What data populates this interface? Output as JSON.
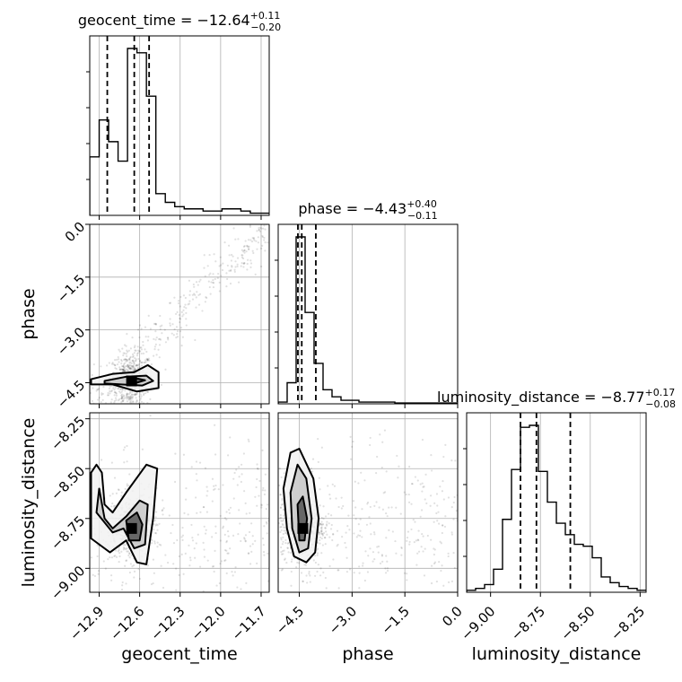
{
  "chart_data": {
    "type": "corner",
    "parameters": [
      "geocent_time",
      "phase",
      "luminosity_distance"
    ],
    "grid": true,
    "titles": [
      {
        "parameter": "geocent_time",
        "prefix": "geocent_time = ",
        "median": "−12.64",
        "plus": "+0.11",
        "minus": "−0.20"
      },
      {
        "parameter": "phase",
        "prefix": "phase = ",
        "median": "−4.43",
        "plus": "+0.40",
        "minus": "−0.11"
      },
      {
        "parameter": "luminosity_distance",
        "prefix": "luminosity_distance = ",
        "median": "−8.77",
        "plus": "+0.17",
        "minus": "−0.08"
      }
    ],
    "axes": {
      "geocent_time": {
        "range": [
          -12.97,
          -11.64
        ],
        "ticks": [
          -12.9,
          -12.6,
          -12.3,
          -12.0,
          -11.7
        ],
        "tick_labels": [
          "−12.9",
          "−12.6",
          "−12.3",
          "−12.0",
          "−11.7"
        ]
      },
      "phase": {
        "range": [
          -5.1,
          0.0
        ],
        "ticks": [
          -4.5,
          -3.0,
          -1.5,
          0.0
        ],
        "tick_labels": [
          "−4.5",
          "−3.0",
          "−1.5",
          "0.0"
        ]
      },
      "luminosity_distance": {
        "range": [
          -9.12,
          -8.22
        ],
        "ticks": [
          -9.0,
          -8.75,
          -8.5,
          -8.25
        ],
        "tick_labels": [
          "−9.00",
          "−8.75",
          "−8.50",
          "−8.25"
        ]
      }
    },
    "histograms": [
      {
        "parameter": "geocent_time",
        "quantiles": [
          -12.84,
          -12.64,
          -12.53
        ],
        "bins": [
          -12.97,
          -12.9,
          -12.83,
          -12.76,
          -12.69,
          -12.62,
          -12.55,
          -12.48,
          -12.41,
          -12.34,
          -12.27,
          -12.2,
          -12.13,
          -12.06,
          -11.99,
          -11.92,
          -11.85,
          -11.78,
          -11.71,
          -11.64
        ],
        "counts": [
          27,
          44,
          34,
          25,
          77,
          75,
          55,
          10,
          6,
          4,
          3,
          3,
          2,
          2,
          3,
          3,
          2,
          1,
          1
        ]
      },
      {
        "parameter": "phase",
        "quantiles": [
          -4.54,
          -4.43,
          -4.03
        ],
        "bins": [
          -5.1,
          -4.845,
          -4.59,
          -4.335,
          -4.08,
          -3.825,
          -3.57,
          -3.315,
          -3.06,
          -2.805,
          -2.55,
          -2.295,
          -2.04,
          -1.785,
          -1.53,
          -1.275,
          -1.02,
          -0.765,
          -0.51,
          -0.255,
          0.0
        ],
        "counts": [
          1,
          12,
          95,
          52,
          23,
          8,
          4,
          2,
          2,
          1,
          1,
          1,
          1,
          0.5,
          0.5,
          0.5,
          0.5,
          0.5,
          0.5,
          0.5
        ]
      },
      {
        "parameter": "luminosity_distance",
        "quantiles": [
          -8.85,
          -8.77,
          -8.6
        ],
        "bins": [
          -9.12,
          -9.075,
          -9.03,
          -8.985,
          -8.94,
          -8.895,
          -8.85,
          -8.805,
          -8.76,
          -8.715,
          -8.67,
          -8.625,
          -8.58,
          -8.535,
          -8.49,
          -8.445,
          -8.4,
          -8.355,
          -8.31,
          -8.265,
          -8.22
        ],
        "counts": [
          1,
          2,
          4,
          12,
          38,
          64,
          86,
          87,
          63,
          47,
          36,
          30,
          25,
          24,
          18,
          8,
          5,
          3,
          2,
          1
        ]
      }
    ],
    "scatter_2d": [
      {
        "x": "geocent_time",
        "y": "phase",
        "density_peak": {
          "x": -12.66,
          "y": -4.45
        },
        "contour_levels": [
          [
            [
              -12.96,
              -4.4
            ],
            [
              -12.8,
              -4.25
            ],
            [
              -12.64,
              -4.2
            ],
            [
              -12.54,
              -4.0
            ],
            [
              -12.46,
              -4.2
            ],
            [
              -12.46,
              -4.65
            ],
            [
              -12.62,
              -4.75
            ],
            [
              -12.8,
              -4.55
            ],
            [
              -12.96,
              -4.55
            ]
          ],
          [
            [
              -12.86,
              -4.45
            ],
            [
              -12.7,
              -4.33
            ],
            [
              -12.55,
              -4.3
            ],
            [
              -12.5,
              -4.45
            ],
            [
              -12.58,
              -4.58
            ],
            [
              -12.74,
              -4.55
            ],
            [
              -12.86,
              -4.52
            ]
          ],
          [
            [
              -12.68,
              -4.43
            ],
            [
              -12.62,
              -4.38
            ],
            [
              -12.56,
              -4.43
            ],
            [
              -12.62,
              -4.5
            ]
          ]
        ]
      },
      {
        "x": "geocent_time",
        "y": "luminosity_distance",
        "density_peak": {
          "x": -12.66,
          "y": -8.8
        },
        "contour_levels": [
          [
            [
              -12.96,
              -8.52
            ],
            [
              -12.92,
              -8.48
            ],
            [
              -12.88,
              -8.52
            ],
            [
              -12.86,
              -8.68
            ],
            [
              -12.8,
              -8.72
            ],
            [
              -12.7,
              -8.62
            ],
            [
              -12.55,
              -8.48
            ],
            [
              -12.47,
              -8.5
            ],
            [
              -12.5,
              -8.75
            ],
            [
              -12.55,
              -8.98
            ],
            [
              -12.62,
              -8.97
            ],
            [
              -12.7,
              -8.86
            ],
            [
              -12.82,
              -8.92
            ],
            [
              -12.96,
              -8.85
            ]
          ],
          [
            [
              -12.9,
              -8.6
            ],
            [
              -12.86,
              -8.75
            ],
            [
              -12.8,
              -8.8
            ],
            [
              -12.7,
              -8.74
            ],
            [
              -12.6,
              -8.66
            ],
            [
              -12.54,
              -8.68
            ],
            [
              -12.56,
              -8.88
            ],
            [
              -12.64,
              -8.9
            ],
            [
              -12.72,
              -8.8
            ],
            [
              -12.8,
              -8.82
            ],
            [
              -12.92,
              -8.72
            ]
          ],
          [
            [
              -12.7,
              -8.76
            ],
            [
              -12.62,
              -8.72
            ],
            [
              -12.58,
              -8.78
            ],
            [
              -12.6,
              -8.86
            ],
            [
              -12.68,
              -8.86
            ]
          ]
        ]
      },
      {
        "x": "phase",
        "y": "luminosity_distance",
        "density_peak": {
          "x": -4.4,
          "y": -8.8
        },
        "contour_levels": [
          [
            [
              -4.95,
              -8.6
            ],
            [
              -4.75,
              -8.42
            ],
            [
              -4.5,
              -8.4
            ],
            [
              -4.1,
              -8.55
            ],
            [
              -3.95,
              -8.75
            ],
            [
              -4.05,
              -8.92
            ],
            [
              -4.3,
              -8.97
            ],
            [
              -4.65,
              -8.94
            ],
            [
              -4.85,
              -8.8
            ]
          ],
          [
            [
              -4.75,
              -8.62
            ],
            [
              -4.55,
              -8.48
            ],
            [
              -4.3,
              -8.55
            ],
            [
              -4.15,
              -8.75
            ],
            [
              -4.25,
              -8.9
            ],
            [
              -4.5,
              -8.92
            ],
            [
              -4.7,
              -8.8
            ]
          ],
          [
            [
              -4.55,
              -8.68
            ],
            [
              -4.4,
              -8.64
            ],
            [
              -4.28,
              -8.75
            ],
            [
              -4.35,
              -8.86
            ],
            [
              -4.5,
              -8.86
            ]
          ]
        ]
      }
    ]
  }
}
